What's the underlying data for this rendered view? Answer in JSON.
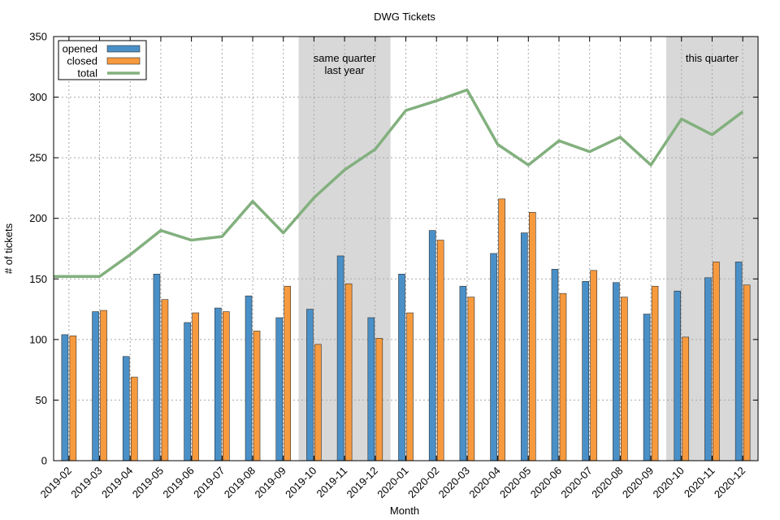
{
  "chart_data": {
    "type": "bar",
    "title": "DWG Tickets",
    "xlabel": "Month",
    "ylabel": "# of tickets",
    "ylim": [
      0,
      350
    ],
    "yticks": [
      0,
      50,
      100,
      150,
      200,
      250,
      300,
      350
    ],
    "grid": true,
    "legend_position": "top-left",
    "categories": [
      "2019-02",
      "2019-03",
      "2019-04",
      "2019-05",
      "2019-06",
      "2019-07",
      "2019-08",
      "2019-09",
      "2019-10",
      "2019-11",
      "2019-12",
      "2020-01",
      "2020-02",
      "2020-03",
      "2020-04",
      "2020-05",
      "2020-06",
      "2020-07",
      "2020-08",
      "2020-09",
      "2020-10",
      "2020-11",
      "2020-12"
    ],
    "series": [
      {
        "name": "opened",
        "kind": "bar",
        "color": "#4a90c8",
        "values": [
          104,
          123,
          86,
          154,
          114,
          126,
          136,
          118,
          125,
          169,
          118,
          154,
          190,
          144,
          171,
          188,
          158,
          148,
          147,
          121,
          140,
          151,
          164
        ]
      },
      {
        "name": "closed",
        "kind": "bar",
        "color": "#f79a3e",
        "values": [
          103,
          124,
          69,
          133,
          122,
          123,
          107,
          144,
          96,
          146,
          101,
          122,
          182,
          135,
          216,
          205,
          138,
          157,
          135,
          144,
          102,
          164,
          145
        ]
      },
      {
        "name": "total",
        "kind": "line",
        "color": "#82b07e",
        "values": [
          152,
          152,
          170,
          190,
          182,
          185,
          214,
          188,
          217,
          240,
          257,
          289,
          297,
          306,
          261,
          244,
          264,
          255,
          267,
          244,
          282,
          269,
          288
        ]
      }
    ],
    "shaded_regions": [
      {
        "from": "2019-10",
        "to": "2019-12",
        "label_line1": "same quarter",
        "label_line2": "last year",
        "color": "#d8d8d8"
      },
      {
        "from": "2020-10",
        "to": "2020-12",
        "label_line1": "this quarter",
        "label_line2": "",
        "color": "#d8d8d8"
      }
    ]
  }
}
